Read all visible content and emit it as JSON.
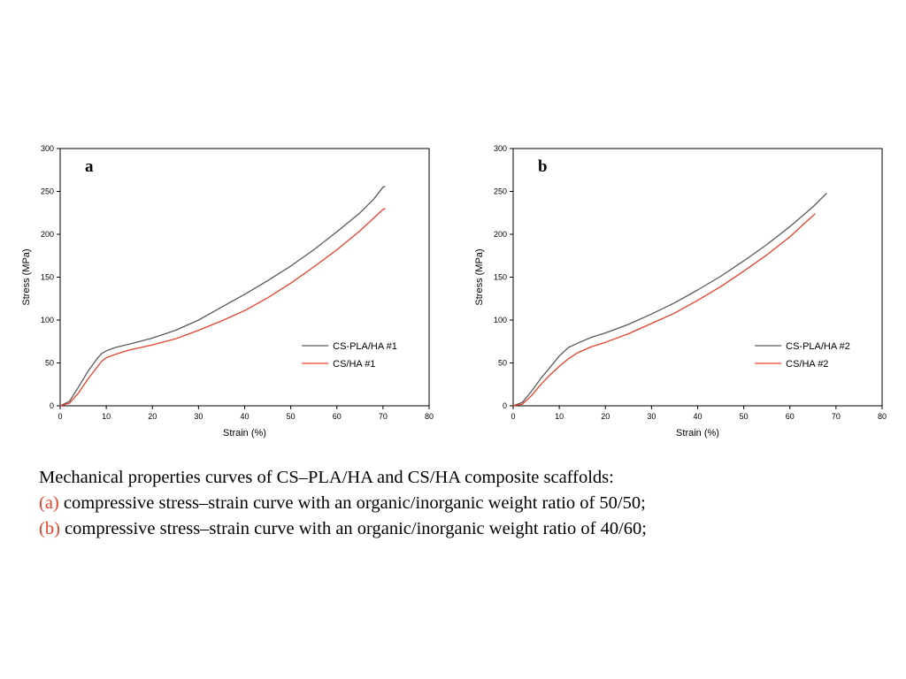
{
  "chart_data": [
    {
      "type": "line",
      "panel": "a",
      "xlabel": "Strain (%)",
      "ylabel": "Stress (MPa)",
      "xlim": [
        0,
        80
      ],
      "ylim": [
        0,
        300
      ],
      "xticks": [
        0,
        10,
        20,
        30,
        40,
        50,
        60,
        70,
        80
      ],
      "yticks": [
        0,
        50,
        100,
        150,
        200,
        250,
        300
      ],
      "legend_position": "lower-right",
      "series": [
        {
          "name": "CS-PLA/HA #1",
          "color": "#5a5a5a",
          "x": [
            0,
            2,
            4,
            6,
            8,
            9,
            10,
            12,
            15,
            20,
            25,
            30,
            35,
            40,
            45,
            50,
            55,
            60,
            65,
            68,
            70,
            70.5
          ],
          "y": [
            0,
            5,
            22,
            40,
            55,
            61,
            64,
            68,
            72,
            79,
            88,
            100,
            115,
            130,
            146,
            163,
            182,
            203,
            225,
            241,
            255,
            256
          ]
        },
        {
          "name": "CS/HA #1",
          "color": "#e8412b",
          "x": [
            0,
            2,
            4,
            6,
            8,
            9,
            10,
            12,
            15,
            20,
            25,
            30,
            35,
            40,
            45,
            50,
            55,
            60,
            65,
            68,
            70,
            70.5
          ],
          "y": [
            0,
            3,
            15,
            31,
            45,
            52,
            56,
            60,
            65,
            71,
            78,
            88,
            99,
            111,
            126,
            143,
            162,
            182,
            204,
            219,
            229,
            230
          ]
        }
      ]
    },
    {
      "type": "line",
      "panel": "b",
      "xlabel": "Strain (%)",
      "ylabel": "Stress (MPa)",
      "xlim": [
        0,
        80
      ],
      "ylim": [
        0,
        300
      ],
      "xticks": [
        0,
        10,
        20,
        30,
        40,
        50,
        60,
        70,
        80
      ],
      "yticks": [
        0,
        50,
        100,
        150,
        200,
        250,
        300
      ],
      "legend_position": "lower-right",
      "series": [
        {
          "name": "CS-PLA/HA #2",
          "color": "#5a5a5a",
          "x": [
            0,
            2,
            4,
            6,
            8,
            10,
            12,
            14,
            17,
            20,
            25,
            30,
            35,
            40,
            45,
            50,
            55,
            60,
            65,
            68
          ],
          "y": [
            0,
            4,
            17,
            32,
            45,
            58,
            68,
            73,
            80,
            85,
            95,
            107,
            120,
            135,
            151,
            169,
            188,
            209,
            232,
            248
          ]
        },
        {
          "name": "CS/HA #2",
          "color": "#e8412b",
          "x": [
            0,
            2,
            4,
            6,
            8,
            10,
            12,
            14,
            17,
            20,
            25,
            30,
            35,
            40,
            45,
            50,
            55,
            60,
            63,
            65.5
          ],
          "y": [
            0,
            2,
            12,
            25,
            36,
            46,
            55,
            62,
            69,
            74,
            84,
            96,
            108,
            123,
            139,
            157,
            176,
            197,
            212,
            224
          ]
        }
      ]
    }
  ],
  "caption": {
    "line1": "Mechanical properties curves of CS–PLA/HA and CS/HA composite scaffolds:",
    "line2_marker": "(a)",
    "line2_text": " compressive stress–strain curve with an organic/inorganic weight ratio of 50/50;",
    "line3_marker": "(b)",
    "line3_text": " compressive stress–strain curve with an organic/inorganic weight ratio of 40/60;"
  }
}
